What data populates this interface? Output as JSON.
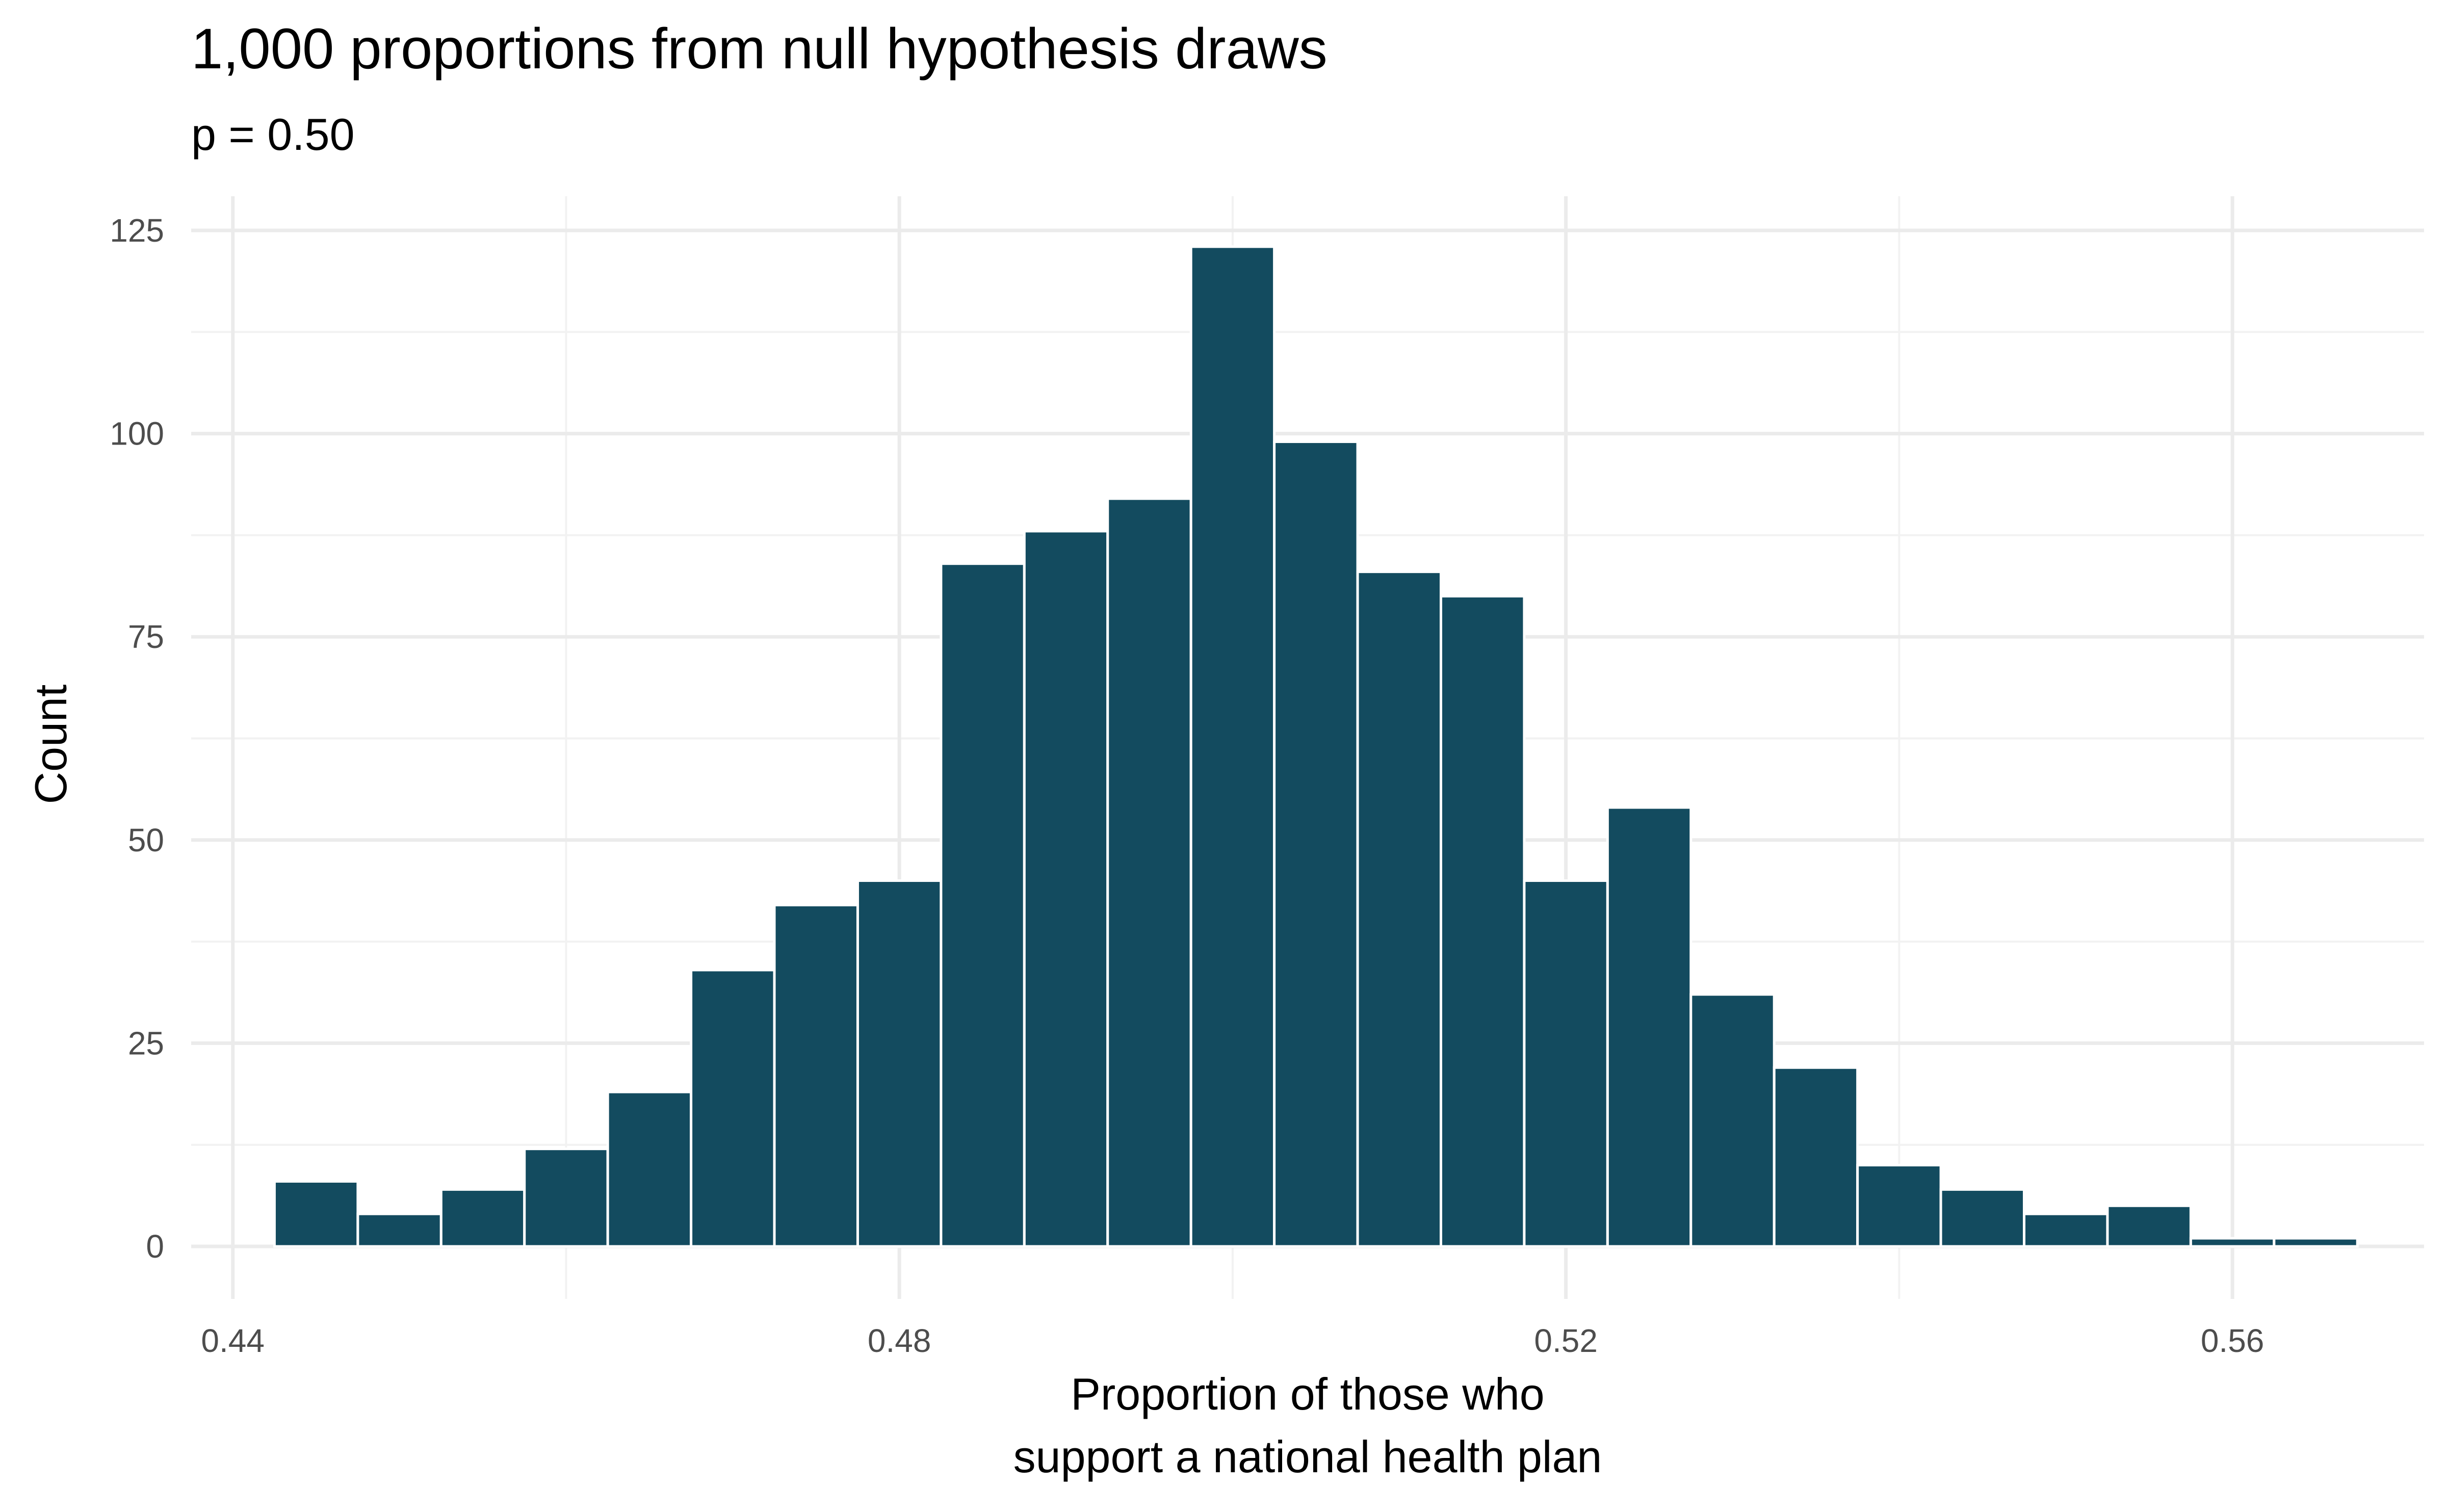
{
  "colors": {
    "bar_fill": "#134b5f",
    "bar_outline": "#ffffff",
    "grid_major": "#ebebeb",
    "grid_minor": "#f2f2f2",
    "tick_text": "#4d4d4d",
    "background": "#ffffff"
  },
  "chart_data": {
    "type": "bar",
    "title": "1,000 proportions from null hypothesis draws",
    "subtitle": "p = 0.50",
    "xlabel": [
      "Proportion of those who",
      "support a national health plan"
    ],
    "ylabel": "Count",
    "grid": true,
    "legend": "none",
    "bin_width": 0.005,
    "xlim": [
      0.4375,
      0.5715
    ],
    "ylim": [
      0,
      125
    ],
    "x_ticks": [
      0.44,
      0.48,
      0.52,
      0.56
    ],
    "x_tick_labels": [
      "0.44",
      "0.48",
      "0.52",
      "0.56"
    ],
    "x_minor_ticks": [
      0.46,
      0.5,
      0.54
    ],
    "y_ticks": [
      0,
      25,
      50,
      75,
      100,
      125
    ],
    "y_tick_labels": [
      "0",
      "25",
      "50",
      "75",
      "100",
      "125"
    ],
    "y_minor_ticks": [
      12.5,
      37.5,
      62.5,
      87.5,
      112.5
    ],
    "bins": [
      {
        "x": 0.445,
        "count": 8
      },
      {
        "x": 0.45,
        "count": 4
      },
      {
        "x": 0.455,
        "count": 7
      },
      {
        "x": 0.46,
        "count": 12
      },
      {
        "x": 0.465,
        "count": 19
      },
      {
        "x": 0.47,
        "count": 34
      },
      {
        "x": 0.475,
        "count": 42
      },
      {
        "x": 0.48,
        "count": 45
      },
      {
        "x": 0.485,
        "count": 84
      },
      {
        "x": 0.49,
        "count": 88
      },
      {
        "x": 0.495,
        "count": 92
      },
      {
        "x": 0.5,
        "count": 123
      },
      {
        "x": 0.505,
        "count": 99
      },
      {
        "x": 0.51,
        "count": 83
      },
      {
        "x": 0.515,
        "count": 80
      },
      {
        "x": 0.52,
        "count": 45
      },
      {
        "x": 0.525,
        "count": 54
      },
      {
        "x": 0.53,
        "count": 31
      },
      {
        "x": 0.535,
        "count": 22
      },
      {
        "x": 0.54,
        "count": 10
      },
      {
        "x": 0.545,
        "count": 7
      },
      {
        "x": 0.55,
        "count": 4
      },
      {
        "x": 0.555,
        "count": 5
      },
      {
        "x": 0.56,
        "count": 1
      },
      {
        "x": 0.565,
        "count": 1
      }
    ]
  }
}
